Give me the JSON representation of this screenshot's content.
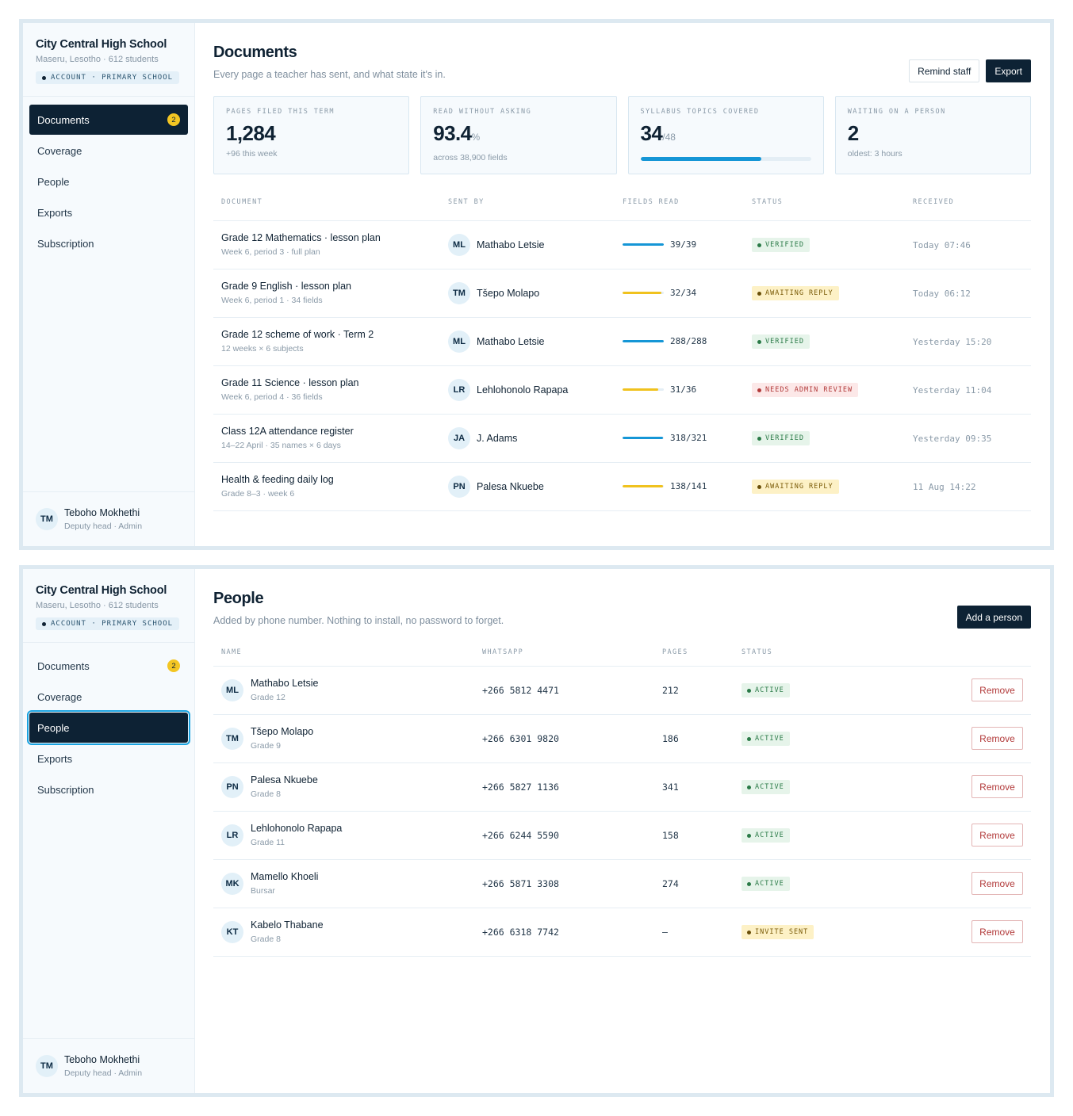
{
  "school": {
    "name": "City Central High School",
    "location": "Maseru, Lesotho · 612 students",
    "account_tag": "ACCOUNT · PRIMARY SCHOOL"
  },
  "nav": [
    {
      "label": "Documents",
      "badge": "2"
    },
    {
      "label": "Coverage"
    },
    {
      "label": "People"
    },
    {
      "label": "Exports"
    },
    {
      "label": "Subscription"
    }
  ],
  "user": {
    "initials": "TM",
    "name": "Teboho Mokhethi",
    "role": "Deputy head · Admin"
  },
  "documents_page": {
    "title": "Documents",
    "subtitle": "Every page a teacher has sent, and what state it's in.",
    "remind_label": "Remind staff",
    "export_label": "Export",
    "stats": [
      {
        "label": "PAGES FILED THIS TERM",
        "value": "1,284",
        "sub": "+96 this week"
      },
      {
        "label": "READ WITHOUT ASKING",
        "value": "93.4",
        "unit": "%",
        "sub": "across 38,900 fields"
      },
      {
        "label": "SYLLABUS TOPICS COVERED",
        "value": "34",
        "unit": "/48",
        "progress": 0.71
      },
      {
        "label": "WAITING ON A PERSON",
        "value": "2",
        "sub": "oldest: 3 hours"
      }
    ],
    "columns": [
      "DOCUMENT",
      "SENT BY",
      "FIELDS READ",
      "STATUS",
      "RECEIVED"
    ],
    "rows": [
      {
        "doc": "Grade 12 Mathematics · lesson plan",
        "sub": "Week 6, period 3 · full plan",
        "initials": "ML",
        "sender": "Mathabo Letsie",
        "fields": "39/39",
        "fill": 1.0,
        "bar_color": "#1596d6",
        "status": "VERIFIED",
        "status_kind": "green",
        "received": "Today 07:46"
      },
      {
        "doc": "Grade 9 English · lesson plan",
        "sub": "Week 6, period 1 · 34 fields",
        "initials": "TM",
        "sender": "Tšepo Molapo",
        "fields": "32/34",
        "fill": 0.94,
        "bar_color": "#f0c21e",
        "status": "AWAITING REPLY",
        "status_kind": "yellow",
        "received": "Today 06:12"
      },
      {
        "doc": "Grade 12 scheme of work · Term 2",
        "sub": "12 weeks × 6 subjects",
        "initials": "ML",
        "sender": "Mathabo Letsie",
        "fields": "288/288",
        "fill": 1.0,
        "bar_color": "#1596d6",
        "status": "VERIFIED",
        "status_kind": "green",
        "received": "Yesterday 15:20"
      },
      {
        "doc": "Grade 11 Science · lesson plan",
        "sub": "Week 6, period 4 · 36 fields",
        "initials": "LR",
        "sender": "Lehlohonolo Rapapa",
        "fields": "31/36",
        "fill": 0.86,
        "bar_color": "#f0c21e",
        "status": "NEEDS ADMIN REVIEW",
        "status_kind": "red",
        "received": "Yesterday 11:04"
      },
      {
        "doc": "Class 12A attendance register",
        "sub": "14–22 April · 35 names × 6 days",
        "initials": "JA",
        "sender": "J. Adams",
        "fields": "318/321",
        "fill": 0.99,
        "bar_color": "#1596d6",
        "status": "VERIFIED",
        "status_kind": "green",
        "received": "Yesterday 09:35"
      },
      {
        "doc": "Health & feeding daily log",
        "sub": "Grade 8–3 · week 6",
        "initials": "PN",
        "sender": "Palesa Nkuebe",
        "fields": "138/141",
        "fill": 0.98,
        "bar_color": "#f0c21e",
        "status": "AWAITING REPLY",
        "status_kind": "yellow",
        "received": "11 Aug 14:22"
      }
    ]
  },
  "people_page": {
    "title": "People",
    "subtitle": "Added by phone number. Nothing to install, no password to forget.",
    "add_label": "Add a person",
    "remove_label": "Remove",
    "columns": [
      "NAME",
      "WHATSAPP",
      "PAGES",
      "STATUS"
    ],
    "rows": [
      {
        "initials": "ML",
        "name": "Mathabo Letsie",
        "sub": "Grade 12",
        "phone": "+266 5812 4471",
        "pages": "212",
        "status": "ACTIVE",
        "status_kind": "green"
      },
      {
        "initials": "TM",
        "name": "Tšepo Molapo",
        "sub": "Grade 9",
        "phone": "+266 6301 9820",
        "pages": "186",
        "status": "ACTIVE",
        "status_kind": "green"
      },
      {
        "initials": "PN",
        "name": "Palesa Nkuebe",
        "sub": "Grade 8",
        "phone": "+266 5827 1136",
        "pages": "341",
        "status": "ACTIVE",
        "status_kind": "green"
      },
      {
        "initials": "LR",
        "name": "Lehlohonolo Rapapa",
        "sub": "Grade 11",
        "phone": "+266 6244 5590",
        "pages": "158",
        "status": "ACTIVE",
        "status_kind": "green"
      },
      {
        "initials": "MK",
        "name": "Mamello Khoeli",
        "sub": "Bursar",
        "phone": "+266 5871 3308",
        "pages": "274",
        "status": "ACTIVE",
        "status_kind": "green"
      },
      {
        "initials": "KT",
        "name": "Kabelo Thabane",
        "sub": "Grade 8",
        "phone": "+266 6318 7742",
        "pages": "–",
        "status": "INVITE SENT",
        "status_kind": "yellow"
      }
    ]
  }
}
